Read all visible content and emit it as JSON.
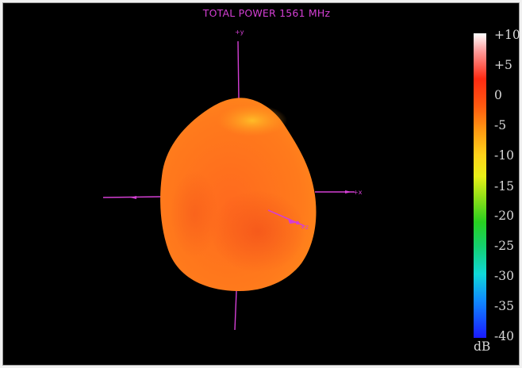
{
  "plot": {
    "title": "TOTAL POWER 1561   MHz"
  },
  "axes": {
    "y_label": "+y",
    "x_label": "+x",
    "z_label": "+z"
  },
  "colorbar": {
    "unit": "dB",
    "ticks": [
      "+10",
      "+5",
      "0",
      "-5",
      "-10",
      "-15",
      "-20",
      "-25",
      "-30",
      "-35",
      "-40"
    ],
    "colors": [
      "#ffffff",
      "#ff2a12",
      "#ff9a12",
      "#ffd21a",
      "#28d020",
      "#10d8d8",
      "#1a1aff"
    ]
  },
  "pattern": {
    "base_color": "#ff6a1a",
    "highlight_color": "#ffb020",
    "axis_color": "#d43fd4"
  }
}
